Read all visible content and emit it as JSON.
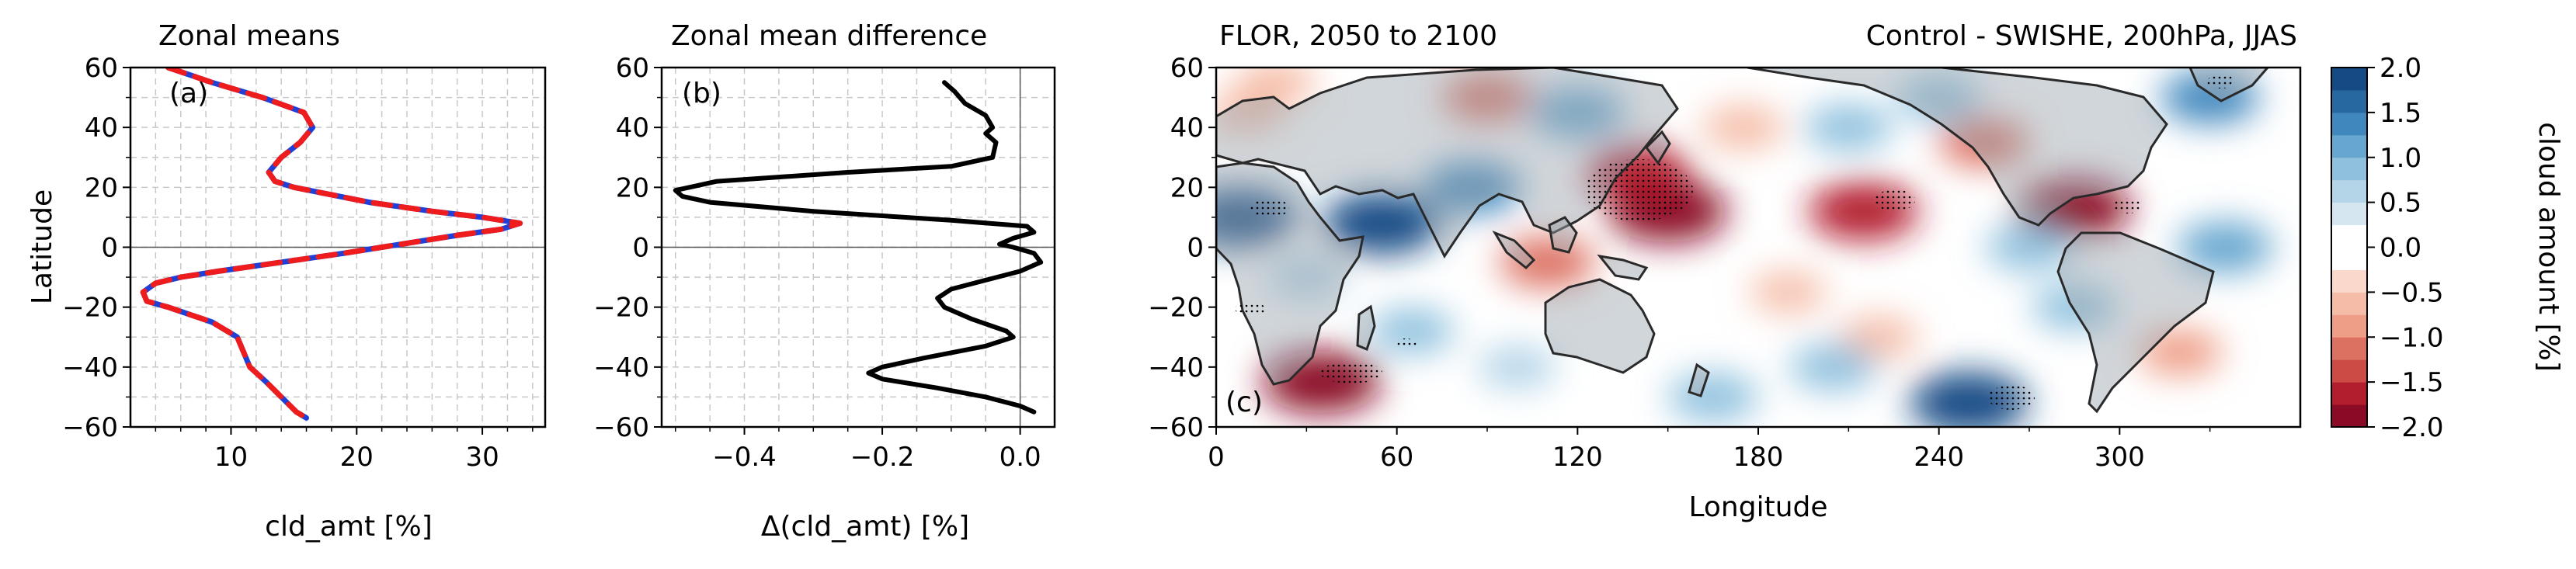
{
  "chart_data": [
    {
      "type": "line",
      "title": "Zonal means",
      "panel_label": "(a)",
      "xlabel": "cld_amt [%]",
      "ylabel": "Latitude",
      "xlim": [
        2,
        35
      ],
      "ylim": [
        -60,
        60
      ],
      "xticks": [
        10,
        20,
        30
      ],
      "yticks": [
        -60,
        -40,
        -20,
        0,
        20,
        40,
        60
      ],
      "grid": true,
      "series": [
        {
          "color": "#1f3fd6",
          "style": "solid",
          "y": [
            60,
            55,
            50,
            45,
            40,
            35,
            30,
            25,
            22,
            20,
            15,
            12,
            10,
            8,
            6,
            4,
            2,
            0,
            -2,
            -5,
            -8,
            -10,
            -12,
            -15,
            -18,
            -20,
            -25,
            -30,
            -35,
            -40,
            -45,
            -50,
            -55,
            -57
          ],
          "x": [
            5,
            8.5,
            12.5,
            15.8,
            16.5,
            15.5,
            14,
            13,
            13.5,
            15,
            21,
            26,
            30,
            33,
            31.5,
            28,
            25,
            22,
            19,
            14,
            9,
            6,
            4,
            3,
            3.3,
            5,
            8.5,
            10.5,
            11,
            11.5,
            12.8,
            14,
            15.2,
            16
          ]
        },
        {
          "color": "#ee1c1c",
          "style": "dashed",
          "y": [
            60,
            55,
            50,
            45,
            40,
            35,
            30,
            25,
            22,
            20,
            15,
            12,
            10,
            8,
            6,
            4,
            2,
            0,
            -2,
            -5,
            -8,
            -10,
            -12,
            -15,
            -18,
            -20,
            -25,
            -30,
            -35,
            -40,
            -45,
            -50,
            -55,
            -57
          ],
          "x": [
            5,
            8.5,
            12.5,
            15.8,
            16.5,
            15.5,
            14,
            13,
            13.5,
            15,
            21,
            26,
            30,
            33,
            31.5,
            28,
            25,
            22,
            19,
            14,
            9,
            6,
            4,
            3,
            3.3,
            5,
            8.5,
            10.5,
            11,
            11.5,
            12.8,
            14,
            15.2,
            16
          ]
        }
      ]
    },
    {
      "type": "line",
      "title": "Zonal mean difference",
      "panel_label": "(b)",
      "xlabel": "Δ(cld_amt) [%]",
      "xlim": [
        -0.52,
        0.05
      ],
      "ylim": [
        -60,
        60
      ],
      "xticks": [
        -0.4,
        -0.2,
        0.0
      ],
      "xticklabels": [
        "−0.4",
        "−0.2",
        "0.0"
      ],
      "yticks": [
        -60,
        -40,
        -20,
        0,
        20,
        40,
        60
      ],
      "grid": true,
      "series": [
        {
          "color": "#000000",
          "style": "solid",
          "y": [
            55,
            52,
            48,
            44,
            40,
            38,
            35,
            30,
            27,
            25,
            22,
            19,
            17,
            15,
            12,
            9,
            7,
            5,
            3,
            1,
            0,
            -2,
            -5,
            -8,
            -11,
            -14,
            -17,
            -20,
            -24,
            -28,
            -30,
            -33,
            -37,
            -40,
            -42,
            -44,
            -47,
            -50,
            -53,
            -55
          ],
          "x": [
            -0.11,
            -0.095,
            -0.08,
            -0.05,
            -0.04,
            -0.05,
            -0.035,
            -0.04,
            -0.1,
            -0.25,
            -0.44,
            -0.5,
            -0.49,
            -0.45,
            -0.3,
            -0.1,
            0.01,
            0.02,
            -0.01,
            -0.03,
            -0.01,
            0.02,
            0.03,
            0.0,
            -0.05,
            -0.1,
            -0.12,
            -0.11,
            -0.07,
            -0.02,
            -0.01,
            -0.05,
            -0.14,
            -0.2,
            -0.22,
            -0.2,
            -0.12,
            -0.05,
            0.0,
            0.02
          ]
        }
      ]
    },
    {
      "type": "heatmap",
      "title_left": "FLOR, 2050 to 2100",
      "title_right": "Control - SWISHE, 200hPa, JJAS",
      "panel_label": "(c)",
      "xlabel": "Longitude",
      "xlim": [
        0,
        360
      ],
      "ylim": [
        -60,
        60
      ],
      "xticks": [
        0,
        60,
        120,
        180,
        240,
        300
      ],
      "yticks": [
        -60,
        -40,
        -20,
        0,
        20,
        40,
        60
      ],
      "colorbar": {
        "label": "cloud amount [%]",
        "levels": [
          -2.0,
          -1.75,
          -1.5,
          -1.25,
          -1.0,
          -0.75,
          -0.5,
          -0.25,
          0.0,
          0.25,
          0.5,
          0.75,
          1.0,
          1.25,
          1.5,
          1.75,
          2.0
        ],
        "ticks": [
          -2.0,
          -1.5,
          -1.0,
          -0.5,
          0.0,
          0.5,
          1.0,
          1.5,
          2.0
        ],
        "ticklabels": [
          "−2.0",
          "−1.5",
          "−1.0",
          "−0.5",
          "0.0",
          "0.5",
          "1.0",
          "1.5",
          "2.0"
        ],
        "colors": [
          "#8b0a26",
          "#b31e2f",
          "#cc4b45",
          "#dc7061",
          "#ee9d86",
          "#f5bda8",
          "#fad9cc",
          "#ffffff",
          "#ffffff",
          "#d5e6f1",
          "#b4d4e8",
          "#8fc1de",
          "#66a6cf",
          "#3f87bd",
          "#26689f",
          "#144b85"
        ]
      },
      "anomalies": [
        {
          "lon": 150,
          "lat": 12,
          "value": -2.0
        },
        {
          "lon": 140,
          "lat": 25,
          "value": -1.5
        },
        {
          "lon": 110,
          "lat": -5,
          "value": -1.2
        },
        {
          "lon": 90,
          "lat": 50,
          "value": -1.0
        },
        {
          "lon": 35,
          "lat": -45,
          "value": -2.0
        },
        {
          "lon": 215,
          "lat": 12,
          "value": -1.7
        },
        {
          "lon": 285,
          "lat": 13,
          "value": -1.8
        },
        {
          "lon": 255,
          "lat": 35,
          "value": -1.0
        },
        {
          "lon": 220,
          "lat": -30,
          "value": -0.6
        },
        {
          "lon": 320,
          "lat": -35,
          "value": -0.8
        },
        {
          "lon": 20,
          "lat": 55,
          "value": -0.6
        },
        {
          "lon": 175,
          "lat": 40,
          "value": -0.7
        },
        {
          "lon": 190,
          "lat": -15,
          "value": -0.5
        },
        {
          "lon": 10,
          "lat": 45,
          "value": -0.5
        },
        {
          "lon": 55,
          "lat": 8,
          "value": 2.0
        },
        {
          "lon": 8,
          "lat": 10,
          "value": 1.8
        },
        {
          "lon": 85,
          "lat": 20,
          "value": 1.3
        },
        {
          "lon": 120,
          "lat": 45,
          "value": 1.2
        },
        {
          "lon": 270,
          "lat": 0,
          "value": 0.9
        },
        {
          "lon": 335,
          "lat": 0,
          "value": 1.2
        },
        {
          "lon": 285,
          "lat": -20,
          "value": 0.8
        },
        {
          "lon": 250,
          "lat": -52,
          "value": 2.0
        },
        {
          "lon": 330,
          "lat": 50,
          "value": 1.3
        },
        {
          "lon": 210,
          "lat": 40,
          "value": 0.9
        },
        {
          "lon": 165,
          "lat": -50,
          "value": 1.0
        },
        {
          "lon": 65,
          "lat": -28,
          "value": 0.8
        },
        {
          "lon": 205,
          "lat": -40,
          "value": 0.9
        },
        {
          "lon": 100,
          "lat": -40,
          "value": 0.6
        },
        {
          "lon": 240,
          "lat": 50,
          "value": 0.8
        },
        {
          "lon": 30,
          "lat": -10,
          "value": 0.6
        }
      ]
    }
  ]
}
